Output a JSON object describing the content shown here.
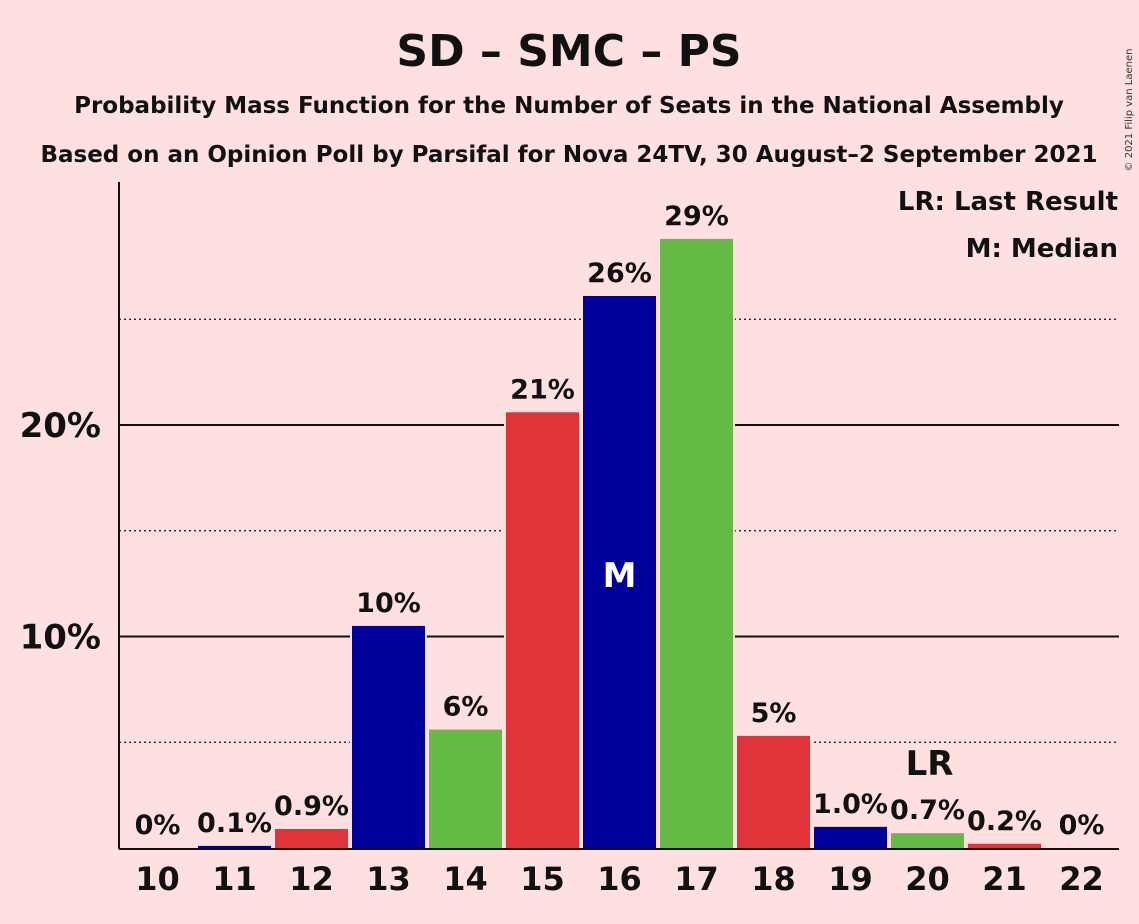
{
  "chart_data": {
    "type": "bar",
    "title": "SD – SMC – PS",
    "subtitle": "Probability Mass Function for the Number of Seats in the National Assembly",
    "subtitle2": "Based on an Opinion Poll by Parsifal for Nova 24TV, 30 August–2 September 2021",
    "copyright": "© 2021 Filip van Laenen",
    "categories": [
      "10",
      "11",
      "12",
      "13",
      "14",
      "15",
      "16",
      "17",
      "18",
      "19",
      "20",
      "21",
      "22"
    ],
    "values": [
      0,
      0.1,
      0.9,
      10.5,
      5.6,
      20.6,
      26.1,
      28.8,
      5.3,
      1.0,
      0.7,
      0.2,
      0
    ],
    "labels": [
      "0%",
      "0.1%",
      "0.9%",
      "10%",
      "6%",
      "21%",
      "26%",
      "29%",
      "5%",
      "1.0%",
      "0.7%",
      "0.2%",
      "0%"
    ],
    "bar_colors": [
      "#E1343A",
      "#00009A",
      "#E1343A",
      "#00009A",
      "#66BB46",
      "#E1343A",
      "#00009A",
      "#66BB46",
      "#E1343A",
      "#00009A",
      "#66BB46",
      "#E1343A",
      "#00009A"
    ],
    "ylim": [
      0,
      31.5
    ],
    "yticks": [
      {
        "value": 10,
        "label": "10%"
      },
      {
        "value": 20,
        "label": "20%"
      }
    ],
    "minor_gridlines": [
      5,
      15,
      25
    ],
    "median": {
      "category": "16",
      "label": "M"
    },
    "last_result": {
      "category": "20",
      "label": "LR"
    },
    "legend": [
      "LR: Last Result",
      "M: Median"
    ],
    "legend_position": "top-right",
    "grid": true
  },
  "colors": {
    "background": "#FFE0E0",
    "red": "#E1343A",
    "blue": "#00009A",
    "green": "#66BB46"
  }
}
